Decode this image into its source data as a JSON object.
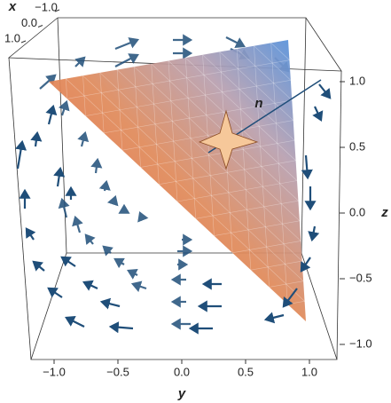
{
  "chart_data": {
    "type": "vector-field-3d",
    "x_label": "x",
    "y_label": "y",
    "z_label": "z",
    "normal_label": "n",
    "xlim": [
      -1,
      1
    ],
    "xticks": [
      {
        "value": -1,
        "label": "−1.0"
      },
      {
        "value": 0,
        "label": "0.0"
      },
      {
        "value": 1,
        "label": "1.0"
      }
    ],
    "ylim": [
      -1.2,
      1.2
    ],
    "yticks": [
      {
        "value": -1,
        "label": "−1.0"
      },
      {
        "value": -0.5,
        "label": "−0.5"
      },
      {
        "value": 0,
        "label": "0.0"
      },
      {
        "value": 0.5,
        "label": "0.5"
      },
      {
        "value": 1,
        "label": "1.0"
      }
    ],
    "zlim": [
      -1.2,
      1.2
    ],
    "zticks": [
      {
        "value": 1,
        "label": "1.0"
      },
      {
        "value": 0.5,
        "label": "0.5"
      },
      {
        "value": 0,
        "label": "0.0"
      },
      {
        "value": -0.5,
        "label": "−0.5"
      },
      {
        "value": -1,
        "label": "−1.0"
      }
    ],
    "arrow_color": "#1f4e79"
  }
}
